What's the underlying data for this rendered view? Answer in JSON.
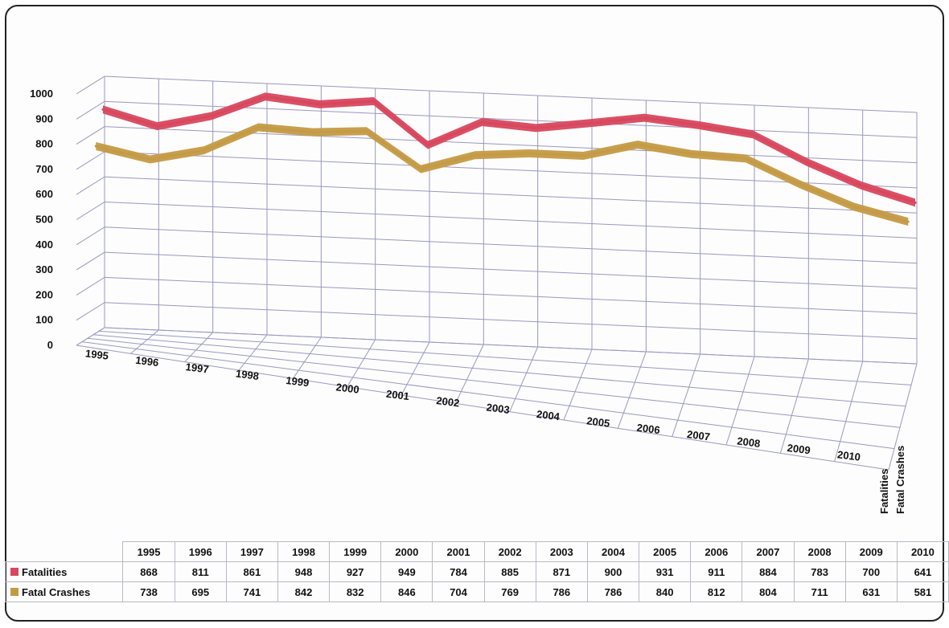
{
  "chart_data": {
    "type": "line",
    "title": "",
    "xlabel": "",
    "ylabel": "",
    "ylim": [
      0,
      1000
    ],
    "yticks": [
      0,
      100,
      200,
      300,
      400,
      500,
      600,
      700,
      800,
      900,
      1000
    ],
    "grid": true,
    "legend": "data-table",
    "categories": [
      "1995",
      "1996",
      "1997",
      "1998",
      "1999",
      "2000",
      "2001",
      "2002",
      "2003",
      "2004",
      "2005",
      "2006",
      "2007",
      "2008",
      "2009",
      "2010"
    ],
    "series": [
      {
        "name": "Fatalities",
        "color": "#d8475d",
        "values": [
          868,
          811,
          861,
          948,
          927,
          949,
          784,
          885,
          871,
          900,
          931,
          911,
          884,
          783,
          700,
          641
        ]
      },
      {
        "name": "Fatal Crashes",
        "color": "#c49a45",
        "values": [
          738,
          695,
          741,
          842,
          832,
          846,
          704,
          769,
          786,
          786,
          840,
          812,
          804,
          711,
          631,
          581
        ]
      }
    ],
    "depth_labels": [
      "Fatalities",
      "Fatal Crashes"
    ]
  }
}
